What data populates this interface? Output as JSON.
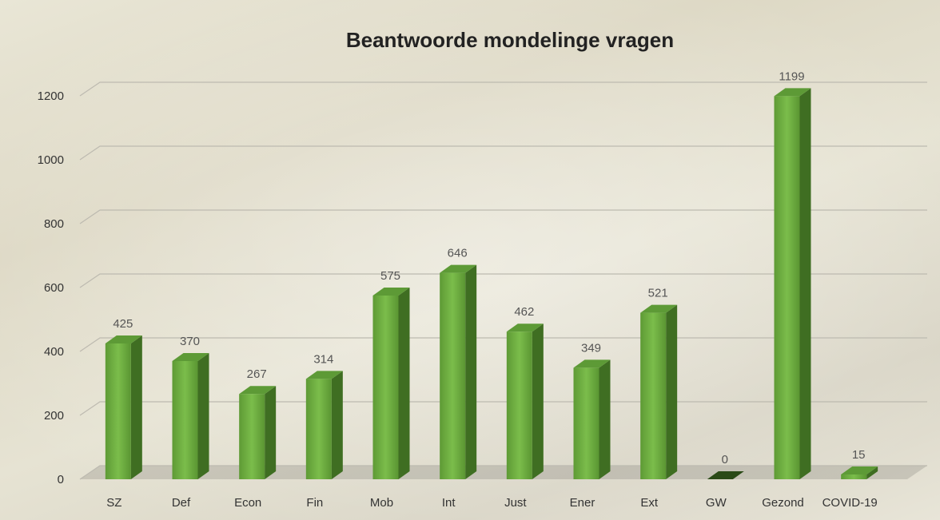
{
  "chart_data": {
    "type": "bar3d",
    "title": "Beantwoorde mondelinge vragen",
    "categories": [
      "SZ",
      "Def",
      "Econ",
      "Fin",
      "Mob",
      "Int",
      "Just",
      "Ener",
      "Ext",
      "GW",
      "Gezond",
      "COVID-19"
    ],
    "values": [
      425,
      370,
      267,
      314,
      575,
      646,
      462,
      349,
      521,
      0,
      1199,
      15
    ],
    "color": "#6aab3e",
    "ylim": [
      0,
      1200
    ],
    "yticks": [
      0,
      200,
      400,
      600,
      800,
      1000,
      1200
    ],
    "grid": true
  }
}
